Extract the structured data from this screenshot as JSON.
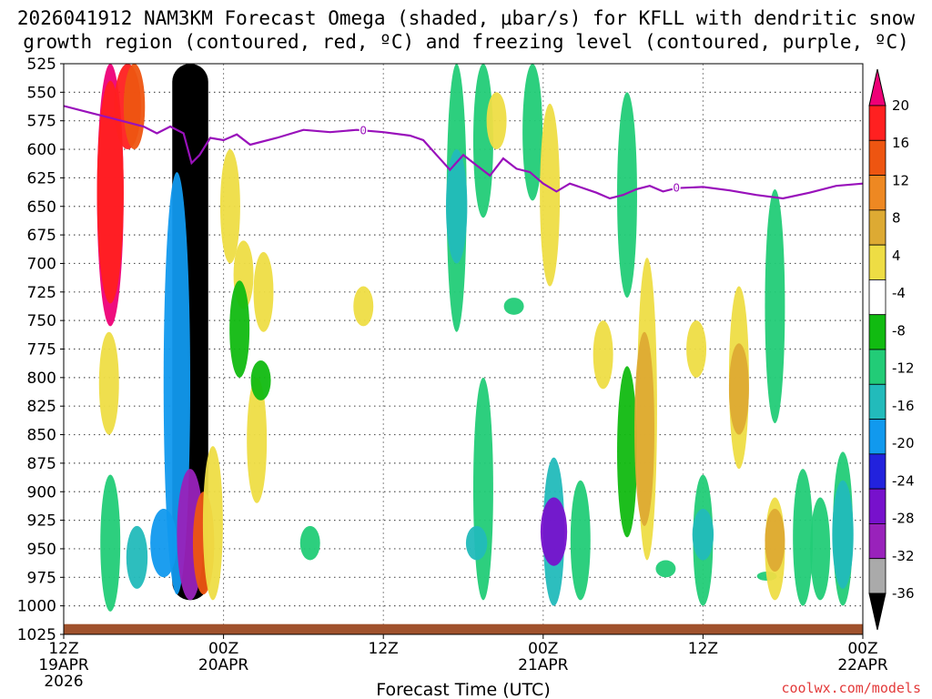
{
  "chart_data": {
    "type": "heatmap",
    "title_line1": "2026041912 NAM3KM Forecast Omega (shaded, μbar/s) for KFLL with dendritic snow",
    "title_line2": "growth region (contoured, red, ºC) and freezing level (contoured, purple, ºC)",
    "xlabel": "Forecast Time (UTC)",
    "ylabel": "",
    "y_ticks": [
      525,
      550,
      575,
      600,
      625,
      650,
      675,
      700,
      725,
      750,
      775,
      800,
      825,
      850,
      875,
      900,
      925,
      950,
      975,
      1000,
      1025
    ],
    "ylim": [
      525,
      1025
    ],
    "x_ticks": [
      {
        "hour": 0,
        "top": "12Z",
        "middle": "19APR",
        "bottom": "2026"
      },
      {
        "hour": 12,
        "top": "00Z",
        "middle": "20APR",
        "bottom": ""
      },
      {
        "hour": 24,
        "top": "12Z",
        "middle": "",
        "bottom": ""
      },
      {
        "hour": 36,
        "top": "00Z",
        "middle": "21APR",
        "bottom": ""
      },
      {
        "hour": 48,
        "top": "12Z",
        "middle": "",
        "bottom": ""
      },
      {
        "hour": 60,
        "top": "00Z",
        "middle": "22APR",
        "bottom": ""
      }
    ],
    "xlim": [
      0,
      60
    ],
    "colorbar": {
      "labels": [
        "20",
        "16",
        "12",
        "8",
        "4",
        "-4",
        "-8",
        "-12",
        "-16",
        "-20",
        "-24",
        "-28",
        "-32",
        "-36"
      ],
      "colors": [
        "#ee0077",
        "#ff2020",
        "#ee5511",
        "#ee8822",
        "#ddaa33",
        "#eedd44",
        "#ffffff",
        "#11bb11",
        "#22cc77",
        "#22bbbb",
        "#1199ee",
        "#2222dd",
        "#7711cc",
        "#9922bb",
        "#aaaaaa",
        "#000000"
      ]
    },
    "freezing_level": {
      "label": "0",
      "points": [
        [
          0,
          562
        ],
        [
          2,
          568
        ],
        [
          4,
          574
        ],
        [
          6,
          580
        ],
        [
          7,
          586
        ],
        [
          8,
          580
        ],
        [
          9,
          586
        ],
        [
          9.6,
          612
        ],
        [
          10.2,
          605
        ],
        [
          11,
          590
        ],
        [
          12,
          592
        ],
        [
          13,
          587
        ],
        [
          14,
          596
        ],
        [
          16,
          590
        ],
        [
          18,
          583
        ],
        [
          20,
          585
        ],
        [
          22,
          583
        ],
        [
          24,
          585
        ],
        [
          26,
          588
        ],
        [
          27,
          592
        ],
        [
          28,
          605
        ],
        [
          29,
          618
        ],
        [
          30,
          605
        ],
        [
          31,
          614
        ],
        [
          32,
          623
        ],
        [
          33,
          608
        ],
        [
          34,
          617
        ],
        [
          35,
          620
        ],
        [
          36,
          630
        ],
        [
          37,
          637
        ],
        [
          38,
          630
        ],
        [
          40,
          638
        ],
        [
          41,
          643
        ],
        [
          42,
          640
        ],
        [
          43,
          635
        ],
        [
          44,
          632
        ],
        [
          45,
          637
        ],
        [
          46,
          634
        ],
        [
          48,
          633
        ],
        [
          50,
          636
        ],
        [
          52,
          640
        ],
        [
          54,
          643
        ],
        [
          56,
          638
        ],
        [
          58,
          632
        ],
        [
          60,
          630
        ]
      ]
    },
    "omega_features": [
      {
        "hour": 3.5,
        "p_top": 525,
        "p_bottom": 755,
        "value": 20
      },
      {
        "hour": 3.5,
        "p_top": 540,
        "p_bottom": 735,
        "value": 16
      },
      {
        "hour": 3.4,
        "p_top": 760,
        "p_bottom": 850,
        "value": 4
      },
      {
        "hour": 4.8,
        "p_top": 525,
        "p_bottom": 600,
        "value": 16
      },
      {
        "hour": 5.3,
        "p_top": 525,
        "p_bottom": 600,
        "value": 12
      },
      {
        "hour": 9.5,
        "p_top": 525,
        "p_bottom": 995,
        "value": -36
      },
      {
        "hour": 8.5,
        "p_top": 620,
        "p_bottom": 990,
        "value": -16
      },
      {
        "hour": 9.5,
        "p_top": 880,
        "p_bottom": 995,
        "value": -28
      },
      {
        "hour": 3.5,
        "p_top": 885,
        "p_bottom": 1005,
        "value": -8
      },
      {
        "hour": 5.5,
        "p_top": 930,
        "p_bottom": 985,
        "value": -12
      },
      {
        "hour": 7.5,
        "p_top": 915,
        "p_bottom": 975,
        "value": -16
      },
      {
        "hour": 10.5,
        "p_top": 900,
        "p_bottom": 990,
        "value": 12
      },
      {
        "hour": 11.2,
        "p_top": 860,
        "p_bottom": 995,
        "value": 4
      },
      {
        "hour": 12.5,
        "p_top": 600,
        "p_bottom": 700,
        "value": 4
      },
      {
        "hour": 13.5,
        "p_top": 680,
        "p_bottom": 740,
        "value": 4
      },
      {
        "hour": 15,
        "p_top": 690,
        "p_bottom": 760,
        "value": 4
      },
      {
        "hour": 14.5,
        "p_top": 800,
        "p_bottom": 910,
        "value": 4
      },
      {
        "hour": 13.2,
        "p_top": 715,
        "p_bottom": 800,
        "value": -4
      },
      {
        "hour": 14.8,
        "p_top": 785,
        "p_bottom": 820,
        "value": -4
      },
      {
        "hour": 18.5,
        "p_top": 930,
        "p_bottom": 960,
        "value": -8
      },
      {
        "hour": 22.5,
        "p_top": 720,
        "p_bottom": 755,
        "value": 4
      },
      {
        "hour": 29.5,
        "p_top": 525,
        "p_bottom": 760,
        "value": -8
      },
      {
        "hour": 29.5,
        "p_top": 600,
        "p_bottom": 700,
        "value": -12
      },
      {
        "hour": 31.5,
        "p_top": 525,
        "p_bottom": 660,
        "value": -8
      },
      {
        "hour": 32.5,
        "p_top": 550,
        "p_bottom": 600,
        "value": 4
      },
      {
        "hour": 31.5,
        "p_top": 800,
        "p_bottom": 995,
        "value": -8
      },
      {
        "hour": 31,
        "p_top": 930,
        "p_bottom": 960,
        "value": -12
      },
      {
        "hour": 33.8,
        "p_top": 730,
        "p_bottom": 745,
        "value": -8
      },
      {
        "hour": 35.2,
        "p_top": 525,
        "p_bottom": 645,
        "value": -8
      },
      {
        "hour": 36.5,
        "p_top": 560,
        "p_bottom": 720,
        "value": 4
      },
      {
        "hour": 36.8,
        "p_top": 870,
        "p_bottom": 1000,
        "value": -12
      },
      {
        "hour": 36.8,
        "p_top": 905,
        "p_bottom": 965,
        "value": -24
      },
      {
        "hour": 38.8,
        "p_top": 890,
        "p_bottom": 995,
        "value": -8
      },
      {
        "hour": 40.5,
        "p_top": 750,
        "p_bottom": 810,
        "value": 4
      },
      {
        "hour": 42.3,
        "p_top": 550,
        "p_bottom": 730,
        "value": -8
      },
      {
        "hour": 42.3,
        "p_top": 790,
        "p_bottom": 940,
        "value": -4
      },
      {
        "hour": 43.8,
        "p_top": 695,
        "p_bottom": 960,
        "value": 4
      },
      {
        "hour": 43.6,
        "p_top": 760,
        "p_bottom": 930,
        "value": 8
      },
      {
        "hour": 45.2,
        "p_top": 960,
        "p_bottom": 975,
        "value": -8
      },
      {
        "hour": 47.5,
        "p_top": 750,
        "p_bottom": 800,
        "value": 4
      },
      {
        "hour": 48,
        "p_top": 885,
        "p_bottom": 1000,
        "value": -8
      },
      {
        "hour": 48,
        "p_top": 915,
        "p_bottom": 960,
        "value": -12
      },
      {
        "hour": 50.7,
        "p_top": 720,
        "p_bottom": 880,
        "value": 4
      },
      {
        "hour": 50.7,
        "p_top": 770,
        "p_bottom": 850,
        "value": 8
      },
      {
        "hour": 52.8,
        "p_top": 970,
        "p_bottom": 978,
        "value": -8
      },
      {
        "hour": 53.4,
        "p_top": 635,
        "p_bottom": 840,
        "value": -8
      },
      {
        "hour": 53.4,
        "p_top": 905,
        "p_bottom": 995,
        "value": 4
      },
      {
        "hour": 53.4,
        "p_top": 915,
        "p_bottom": 970,
        "value": 8
      },
      {
        "hour": 55.5,
        "p_top": 880,
        "p_bottom": 1000,
        "value": -8
      },
      {
        "hour": 56.8,
        "p_top": 905,
        "p_bottom": 995,
        "value": -8
      },
      {
        "hour": 58.5,
        "p_top": 865,
        "p_bottom": 1000,
        "value": -8
      },
      {
        "hour": 58.5,
        "p_top": 890,
        "p_bottom": 985,
        "value": -12
      }
    ],
    "terrain_pressure": 1016
  },
  "credit": "coolwx.com/models"
}
